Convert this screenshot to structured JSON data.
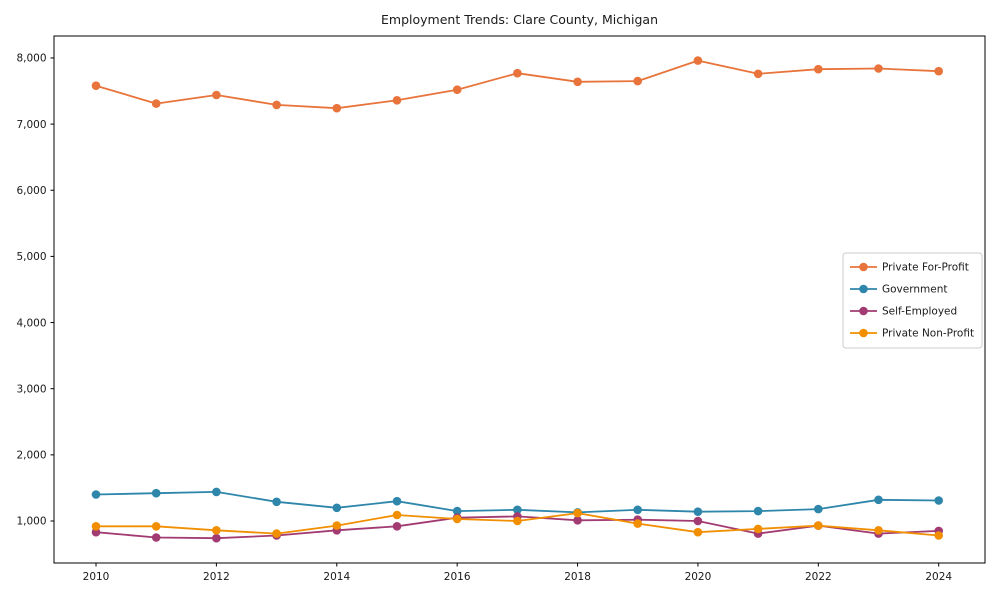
{
  "chart_data": {
    "type": "line",
    "title": "Employment Trends: Clare County, Michigan",
    "xlabel": "",
    "ylabel": "",
    "grid": false,
    "legend_position": "center right",
    "background_color": "#ffffff",
    "spine_color": "#000000",
    "tick_label_color": "#1a1a1a",
    "legend_border_color": "#cccccc",
    "xlim": [
      2009.302,
      2024.769
    ],
    "ylim": [
      365,
      8332
    ],
    "xticks": [
      2010,
      2012,
      2014,
      2016,
      2018,
      2020,
      2022,
      2024
    ],
    "yticks": [
      1000,
      2000,
      3000,
      4000,
      5000,
      6000,
      7000,
      8000
    ],
    "ytick_labels": [
      "1,000",
      "2,000",
      "3,000",
      "4,000",
      "5,000",
      "6,000",
      "7,000",
      "8,000"
    ],
    "x": [
      2010,
      2011,
      2012,
      2013,
      2014,
      2015,
      2016,
      2017,
      2018,
      2019,
      2020,
      2021,
      2022,
      2023,
      2024
    ],
    "series": [
      {
        "name": "Private For-Profit",
        "color": "#E8743B",
        "values": [
          7580,
          7310,
          7440,
          7290,
          7240,
          7360,
          7520,
          7770,
          7640,
          7650,
          7960,
          7760,
          7830,
          7840,
          7800
        ]
      },
      {
        "name": "Government",
        "color": "#2E86AB",
        "values": [
          1400,
          1420,
          1440,
          1290,
          1200,
          1300,
          1150,
          1170,
          1130,
          1170,
          1140,
          1150,
          1180,
          1320,
          1310
        ]
      },
      {
        "name": "Self-Employed",
        "color": "#A23B72",
        "values": [
          830,
          750,
          740,
          780,
          860,
          920,
          1050,
          1070,
          1010,
          1020,
          1000,
          810,
          930,
          810,
          850
        ]
      },
      {
        "name": "Private Non-Profit",
        "color": "#F18F01",
        "values": [
          920,
          920,
          860,
          810,
          930,
          1090,
          1030,
          1000,
          1120,
          960,
          830,
          880,
          930,
          860,
          780
        ]
      }
    ]
  }
}
